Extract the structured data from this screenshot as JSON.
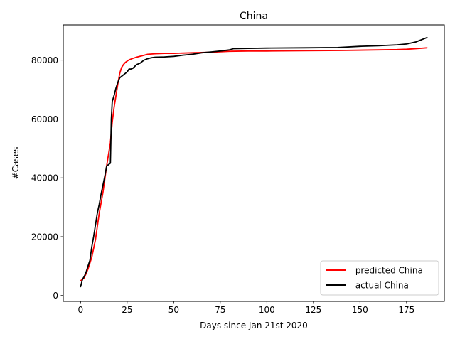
{
  "chart_data": {
    "type": "line",
    "title": "China",
    "xlabel": "Days since Jan 21st 2020",
    "ylabel": "#Cases",
    "xlim": [
      -9.3,
      195.3
    ],
    "ylim": [
      -2000,
      92000
    ],
    "xticks": [
      0,
      25,
      50,
      75,
      100,
      125,
      150,
      175
    ],
    "yticks": [
      0,
      20000,
      40000,
      60000,
      80000
    ],
    "grid": false,
    "legend_position": "lower-right",
    "series": [
      {
        "name": " predicted China",
        "color": "#ff0000",
        "x": [
          0,
          2,
          4,
          6,
          8,
          10,
          12,
          14,
          16,
          17,
          18,
          20,
          21,
          22,
          23,
          24,
          25,
          26,
          28,
          30,
          33,
          36,
          40,
          45,
          50,
          60,
          70,
          80,
          90,
          100,
          120,
          140,
          160,
          170,
          175,
          180,
          186
        ],
        "y": [
          5000,
          6000,
          9000,
          13000,
          19000,
          28000,
          35000,
          44000,
          52000,
          59000,
          64000,
          72000,
          75500,
          77500,
          78500,
          79200,
          79700,
          80100,
          80600,
          81000,
          81500,
          82000,
          82200,
          82300,
          82300,
          82500,
          82700,
          83000,
          83100,
          83100,
          83200,
          83300,
          83500,
          83600,
          83700,
          83900,
          84200
        ]
      },
      {
        "name": " actual China",
        "color": "#000000",
        "x": [
          0,
          1,
          2,
          3,
          4,
          5,
          6,
          7,
          8,
          9,
          10,
          11,
          12,
          13,
          14,
          15,
          16,
          16.5,
          17,
          18,
          19,
          20,
          21,
          22,
          23,
          24,
          25,
          26,
          27,
          28,
          29,
          30,
          32,
          34,
          36,
          38,
          40,
          45,
          50,
          55,
          60,
          65,
          70,
          75,
          80,
          82,
          90,
          100,
          120,
          138,
          150,
          160,
          170,
          175,
          180,
          186
        ],
        "y": [
          3000,
          5500,
          6500,
          8000,
          10000,
          12000,
          16500,
          20000,
          24000,
          28000,
          31000,
          34500,
          37500,
          40500,
          44000,
          44500,
          45000,
          60000,
          66000,
          68000,
          70500,
          72500,
          74000,
          74500,
          75000,
          75500,
          76000,
          77000,
          77000,
          77200,
          77800,
          78500,
          79000,
          80000,
          80500,
          80800,
          81000,
          81100,
          81300,
          81700,
          82000,
          82500,
          82800,
          83100,
          83500,
          83900,
          84000,
          84100,
          84200,
          84300,
          84700,
          84900,
          85200,
          85500,
          86200,
          87700
        ]
      }
    ]
  }
}
